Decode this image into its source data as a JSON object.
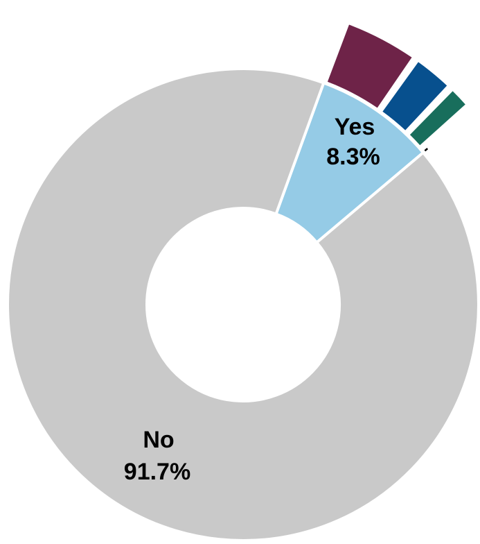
{
  "chart_data": {
    "type": "pie",
    "variant": "donut with exploded breakdown of one slice",
    "categories": [
      "Yes",
      "No"
    ],
    "values": [
      8.3,
      91.7
    ],
    "value_labels": [
      "8.3%",
      "91.7%"
    ],
    "colors": [
      "#95cbe6",
      "#c9c9c9"
    ],
    "breakdown_of": "Yes",
    "breakdown": {
      "values": [
        4.2,
        2.4,
        1.4,
        0.3
      ],
      "colors": [
        "#6e2348",
        "#07508e",
        "#186e5c",
        "#000000"
      ]
    },
    "title": "",
    "legend": "none"
  }
}
